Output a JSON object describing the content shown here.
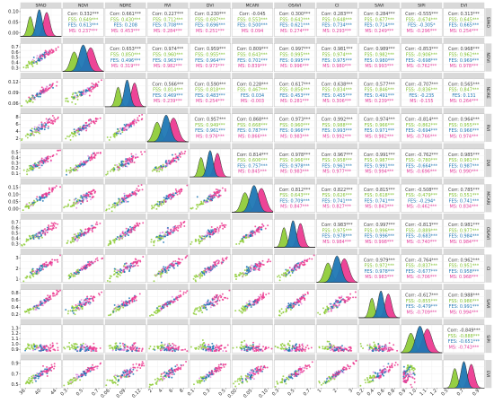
{
  "chart_data": {
    "type": "scatter-matrix",
    "variables": [
      "SPAD",
      "NDVI",
      "NDRE",
      "RVI",
      "DVI",
      "MCARI",
      "OSAVI",
      "CI",
      "SAVI",
      "SIPI",
      "EVI"
    ],
    "groups": [
      {
        "name": "Corr",
        "color": "#404040"
      },
      {
        "name": "FSS",
        "color": "#7cbf2b"
      },
      {
        "name": "FES",
        "color": "#1f77b4"
      },
      {
        "name": "MS",
        "color": "#e6399b"
      }
    ],
    "point_colors": {
      "FSS": "#8fcc3a",
      "FES": "#1f77b4",
      "MS": "#ec3b91",
      "MS_light": "#e08be0"
    },
    "ranges": {
      "SPAD": [
        32,
        48
      ],
      "NDVI": [
        0.25,
        0.82
      ],
      "NDRE": [
        0.055,
        0.135
      ],
      "RVI": [
        1,
        11
      ],
      "DVI": [
        0.03,
        0.52
      ],
      "MCARI": [
        0.0,
        0.15
      ],
      "OSAVI": [
        0.2,
        0.72
      ],
      "CI": [
        0.3,
        3.6
      ],
      "SAVI": [
        0.15,
        0.95
      ],
      "SIPI": [
        0.8,
        1.3
      ],
      "EVI": [
        0.45,
        1.0
      ]
    },
    "x_ticks": {
      "SPAD": [
        "36",
        "40",
        "44"
      ],
      "NDVI": [
        "0.3",
        "0.5",
        "0.7"
      ],
      "NDRE": [
        "0.06",
        "0.09",
        "0.12"
      ],
      "RVI": [
        "2",
        "4",
        "6",
        "8"
      ],
      "DVI": [
        "0.1",
        "0.3",
        "0.5"
      ],
      "MCARI": [
        "0.00",
        "0.05",
        "0.10"
      ],
      "OSAVI": [
        "0.3",
        "0.5",
        "0.7"
      ],
      "CI": [
        "1",
        "2",
        "3"
      ],
      "SAVI": [
        "0.2",
        "0.4",
        "0.6",
        "0.8"
      ],
      "SIPI": [
        "0.9",
        "1.0",
        "1.1",
        "1.2"
      ],
      "EVI": [
        "0.5",
        "0.7",
        "0.9"
      ]
    },
    "y_ticks": [
      [
        "0.10",
        "0.05",
        "0.00"
      ],
      [
        "0.7",
        "0.6",
        "0.5",
        "0.4",
        "0.3"
      ],
      [
        "0.12",
        "0.09",
        "0.06"
      ],
      [
        "8",
        "6",
        "4",
        "2"
      ],
      [
        "0.5",
        "0.4",
        "0.3",
        "0.2",
        "0.1"
      ],
      [
        "0.15",
        "0.10",
        "0.05",
        "0.00"
      ],
      [
        "0.7",
        "0.6",
        "0.5",
        "0.4",
        "0.3"
      ],
      [
        "3",
        "2",
        "1"
      ],
      [
        "0.8",
        "0.6",
        "0.4",
        "0.2"
      ],
      [
        "1.3",
        "1.2",
        "1.1",
        "1.0",
        "0.9"
      ],
      [
        "0.9",
        "0.7",
        "0.5"
      ]
    ],
    "correlations": [
      {
        "row": "SPAD",
        "col": "NDVI",
        "values": [
          "Corr: 0.332***",
          "FSS: 0.649***",
          "FES: 0.613***",
          "MS: 0.237***"
        ]
      },
      {
        "row": "SPAD",
        "col": "NDRE",
        "values": [
          "Corr: 0.661***",
          "FSS: 0.430***",
          "FES: 0.208",
          "MS: 0.453***"
        ]
      },
      {
        "row": "SPAD",
        "col": "RVI",
        "values": [
          "Corr: 0.227***",
          "FSS: 0.712***",
          "FES: 0.708***",
          "MS: 0.284***"
        ]
      },
      {
        "row": "SPAD",
        "col": "DVI",
        "values": [
          "Corr: 0.230***",
          "FSS: 0.697***",
          "FES: 0.696***",
          "MS: 0.251***"
        ]
      },
      {
        "row": "SPAD",
        "col": "MCARI",
        "values": [
          "Corr: -0.045",
          "FSS: 0.553***",
          "FES: 0.500***",
          "MS: 0.094"
        ]
      },
      {
        "row": "SPAD",
        "col": "OSAVI",
        "values": [
          "Corr: 0.300***",
          "FSS: 0.642***",
          "FES: 0.621***",
          "MS: 0.274***"
        ]
      },
      {
        "row": "SPAD",
        "col": "CI",
        "values": [
          "Corr: 0.283***",
          "FSS: 0.648***",
          "FES: 0.734***",
          "MS: 0.293***"
        ]
      },
      {
        "row": "SPAD",
        "col": "SAVI",
        "values": [
          "Corr: 0.284***",
          "FSS: 0.677***",
          "FES: 0.714***",
          "MS: 0.249***"
        ]
      },
      {
        "row": "SPAD",
        "col": "SIPI",
        "values": [
          "Corr: -0.555***",
          "FSS: -0.674***",
          "FES: -0.305*",
          "MS: -0.296***"
        ]
      },
      {
        "row": "SPAD",
        "col": "EVI",
        "values": [
          "Corr: 0.313***",
          "FSS: 0.645***",
          "FES: 0.665***",
          "MS: 0.254***"
        ]
      },
      {
        "row": "NDVI",
        "col": "NDRE",
        "values": [
          "Corr: 0.653***",
          "FSS: 0.850***",
          "FES: 0.496***",
          "MS: 0.319***"
        ]
      },
      {
        "row": "NDVI",
        "col": "RVI",
        "values": [
          "Corr: 0.974***",
          "FSS: 0.960***",
          "FES: 0.963***",
          "MS: 0.982***"
        ]
      },
      {
        "row": "NDVI",
        "col": "DVI",
        "values": [
          "Corr: 0.959***",
          "FSS: 0.955***",
          "FES: 0.964***",
          "MS: 0.973***"
        ]
      },
      {
        "row": "NDVI",
        "col": "MCARI",
        "values": [
          "Corr: 0.809***",
          "FSS: 0.643***",
          "FES: 0.701***",
          "MS: 0.839***"
        ]
      },
      {
        "row": "NDVI",
        "col": "OSAVI",
        "values": [
          "Corr: 0.997***",
          "FSS: 0.995***",
          "FES: 0.995***",
          "MS: 0.996***"
        ]
      },
      {
        "row": "NDVI",
        "col": "CI",
        "values": [
          "Corr: 0.981***",
          "FSS: 0.974***",
          "FES: 0.975***",
          "MS: 0.980***"
        ]
      },
      {
        "row": "NDVI",
        "col": "SAVI",
        "values": [
          "Corr: 0.989***",
          "FSS: 0.982***",
          "FES: 0.980***",
          "MS: 0.993***"
        ]
      },
      {
        "row": "NDVI",
        "col": "SIPI",
        "values": [
          "Corr: -0.853***",
          "FSS: -0.906***",
          "FES: -0.698***",
          "MS: -0.762***"
        ]
      },
      {
        "row": "NDVI",
        "col": "EVI",
        "values": [
          "Corr: 0.968***",
          "FSS: 0.962***",
          "FES: 0.969***",
          "MS: 0.978***"
        ]
      },
      {
        "row": "NDRE",
        "col": "RVI",
        "values": [
          "Corr: 0.566***",
          "FSS: 0.814***",
          "FES: 0.469***",
          "MS: 0.239***"
        ]
      },
      {
        "row": "NDRE",
        "col": "DVI",
        "values": [
          "Corr: 0.590***",
          "FSS: 0.818***",
          "FES: 0.483***",
          "MS: 0.254***"
        ]
      },
      {
        "row": "NDRE",
        "col": "MCARI",
        "values": [
          "Corr: 0.228***",
          "FSS: 0.467***",
          "FES: 0.034",
          "MS: -0.003"
        ]
      },
      {
        "row": "NDRE",
        "col": "OSAVI",
        "values": [
          "Corr: 0.617***",
          "FSS: 0.856***",
          "FES: 0.453***",
          "MS: 0.281***"
        ]
      },
      {
        "row": "NDRE",
        "col": "CI",
        "values": [
          "Corr: 0.638***",
          "FSS: 0.834***",
          "FES: 0.455***",
          "MS: 0.306***"
        ]
      },
      {
        "row": "NDRE",
        "col": "SAVI",
        "values": [
          "Corr: 0.577***",
          "FSS: 0.846***",
          "FES: 0.491***",
          "MS: 0.239***"
        ]
      },
      {
        "row": "NDRE",
        "col": "SIPI",
        "values": [
          "Corr: -0.707***",
          "FSS: -0.836***",
          "FES: -0.235",
          "MS: -0.155"
        ]
      },
      {
        "row": "NDRE",
        "col": "EVI",
        "values": [
          "Corr: 0.565***",
          "FSS: 0.847***",
          "FES: 0.131",
          "MS: 0.264***"
        ]
      },
      {
        "row": "RVI",
        "col": "DVI",
        "values": [
          "Corr: 0.957***",
          "FSS: 0.949***",
          "FES: 0.961***",
          "MS: 0.976***"
        ]
      },
      {
        "row": "RVI",
        "col": "MCARI",
        "values": [
          "Corr: 0.868***",
          "FSS: 0.668***",
          "FES: 0.787***",
          "MS: 0.866***"
        ]
      },
      {
        "row": "RVI",
        "col": "OSAVI",
        "values": [
          "Corr: 0.973***",
          "FSS: 0.960***",
          "FES: 0.966***",
          "MS: 0.983***"
        ]
      },
      {
        "row": "RVI",
        "col": "CI",
        "values": [
          "Corr: 0.992***",
          "FSS: 0.988***",
          "FES: 0.993***",
          "MS: 0.992***"
        ]
      },
      {
        "row": "RVI",
        "col": "SAVI",
        "values": [
          "Corr: 0.974***",
          "FSS: 0.966***",
          "FES: 0.971***",
          "MS: 0.982***"
        ]
      },
      {
        "row": "RVI",
        "col": "SIPI",
        "values": [
          "Corr: -0.814***",
          "FSS: -0.862***",
          "FES: -0.694***",
          "MS: -0.766***"
        ]
      },
      {
        "row": "RVI",
        "col": "EVI",
        "values": [
          "Corr: 0.964***",
          "FSS: 0.955***",
          "FES: 0.966***",
          "MS: 0.974***"
        ]
      },
      {
        "row": "DVI",
        "col": "MCARI",
        "values": [
          "Corr: 0.814***",
          "FSS: 0.606***",
          "FES: 0.757***",
          "MS: 0.845***"
        ]
      },
      {
        "row": "DVI",
        "col": "OSAVI",
        "values": [
          "Corr: 0.978***",
          "FSS: 0.966***",
          "FES: 0.978***",
          "MS: 0.983***"
        ]
      },
      {
        "row": "DVI",
        "col": "CI",
        "values": [
          "Corr: 0.967***",
          "FSS: 0.958***",
          "FES: 0.961***",
          "MS: 0.977***"
        ]
      },
      {
        "row": "DVI",
        "col": "SAVI",
        "values": [
          "Corr: 0.991***",
          "FSS: 0.987***",
          "FES: 0.991***",
          "MS: 0.994***"
        ]
      },
      {
        "row": "DVI",
        "col": "SIPI",
        "values": [
          "Corr: -0.762***",
          "FSS: -0.780***",
          "FES: -0.664***",
          "MS: -0.696***"
        ]
      },
      {
        "row": "DVI",
        "col": "EVI",
        "values": [
          "Corr: 0.985***",
          "FSS: 0.981***",
          "FES: 0.987***",
          "MS: 0.990***"
        ]
      },
      {
        "row": "MCARI",
        "col": "OSAVI",
        "values": [
          "Corr: 0.812***",
          "FSS: 0.643***",
          "FES: 0.709***",
          "MS: 0.847***"
        ]
      },
      {
        "row": "MCARI",
        "col": "CI",
        "values": [
          "Corr: 0.822***",
          "FSS: 0.626***",
          "FES: 0.741***",
          "MS: 0.827***"
        ]
      },
      {
        "row": "MCARI",
        "col": "SAVI",
        "values": [
          "Corr: 0.815***",
          "FSS: 0.618***",
          "FES: 0.741***",
          "MS: 0.843***"
        ]
      },
      {
        "row": "MCARI",
        "col": "SIPI",
        "values": [
          "Corr: -0.508***",
          "FSS: -0.479***",
          "FES: -0.294*",
          "MS: -0.462***"
        ]
      },
      {
        "row": "MCARI",
        "col": "EVI",
        "values": [
          "Corr: 0.785***",
          "FSS: 0.551***",
          "FES: 0.741***",
          "MS: 0.834***"
        ]
      },
      {
        "row": "OSAVI",
        "col": "CI",
        "values": [
          "Corr: 0.983***",
          "FSS: 0.975***",
          "FES: 0.978***",
          "MS: 0.984***"
        ]
      },
      {
        "row": "OSAVI",
        "col": "SAVI",
        "values": [
          "Corr: 0.997***",
          "FSS: 0.996***",
          "FES: 0.996***",
          "MS: 0.998***"
        ]
      },
      {
        "row": "OSAVI",
        "col": "SIPI",
        "values": [
          "Corr: -0.813***",
          "FSS: -0.889***",
          "FES: -0.683***",
          "MS: -0.740***"
        ]
      },
      {
        "row": "OSAVI",
        "col": "EVI",
        "values": [
          "Corr: 0.981***",
          "FSS: 0.977***",
          "FES: 0.984***",
          "MS: 0.984***"
        ]
      },
      {
        "row": "CI",
        "col": "SAVI",
        "values": [
          "Corr: 0.979***",
          "FSS: 0.972***",
          "FES: 0.978***",
          "MS: 0.983***"
        ]
      },
      {
        "row": "CI",
        "col": "SIPI",
        "values": [
          "Corr: -0.764***",
          "FSS: -0.837***",
          "FES: -0.677***",
          "MS: -0.706***"
        ]
      },
      {
        "row": "CI",
        "col": "EVI",
        "values": [
          "Corr: 0.962***",
          "FSS: 0.951***",
          "FES: 0.958***",
          "MS: 0.968***"
        ]
      },
      {
        "row": "SAVI",
        "col": "SIPI",
        "values": [
          "Corr: -0.617***",
          "FSS: -0.855***",
          "FES: -0.479***",
          "MS: -0.709***"
        ]
      },
      {
        "row": "SAVI",
        "col": "EVI",
        "values": [
          "Corr: 0.988***",
          "FSS: 0.986***",
          "FES: 0.991***",
          "MS: 0.994***"
        ]
      },
      {
        "row": "SIPI",
        "col": "EVI",
        "values": [
          "Corr: -0.849***",
          "FSS: -0.888***",
          "FES: -0.651***",
          "MS: -0.743***"
        ]
      }
    ]
  }
}
